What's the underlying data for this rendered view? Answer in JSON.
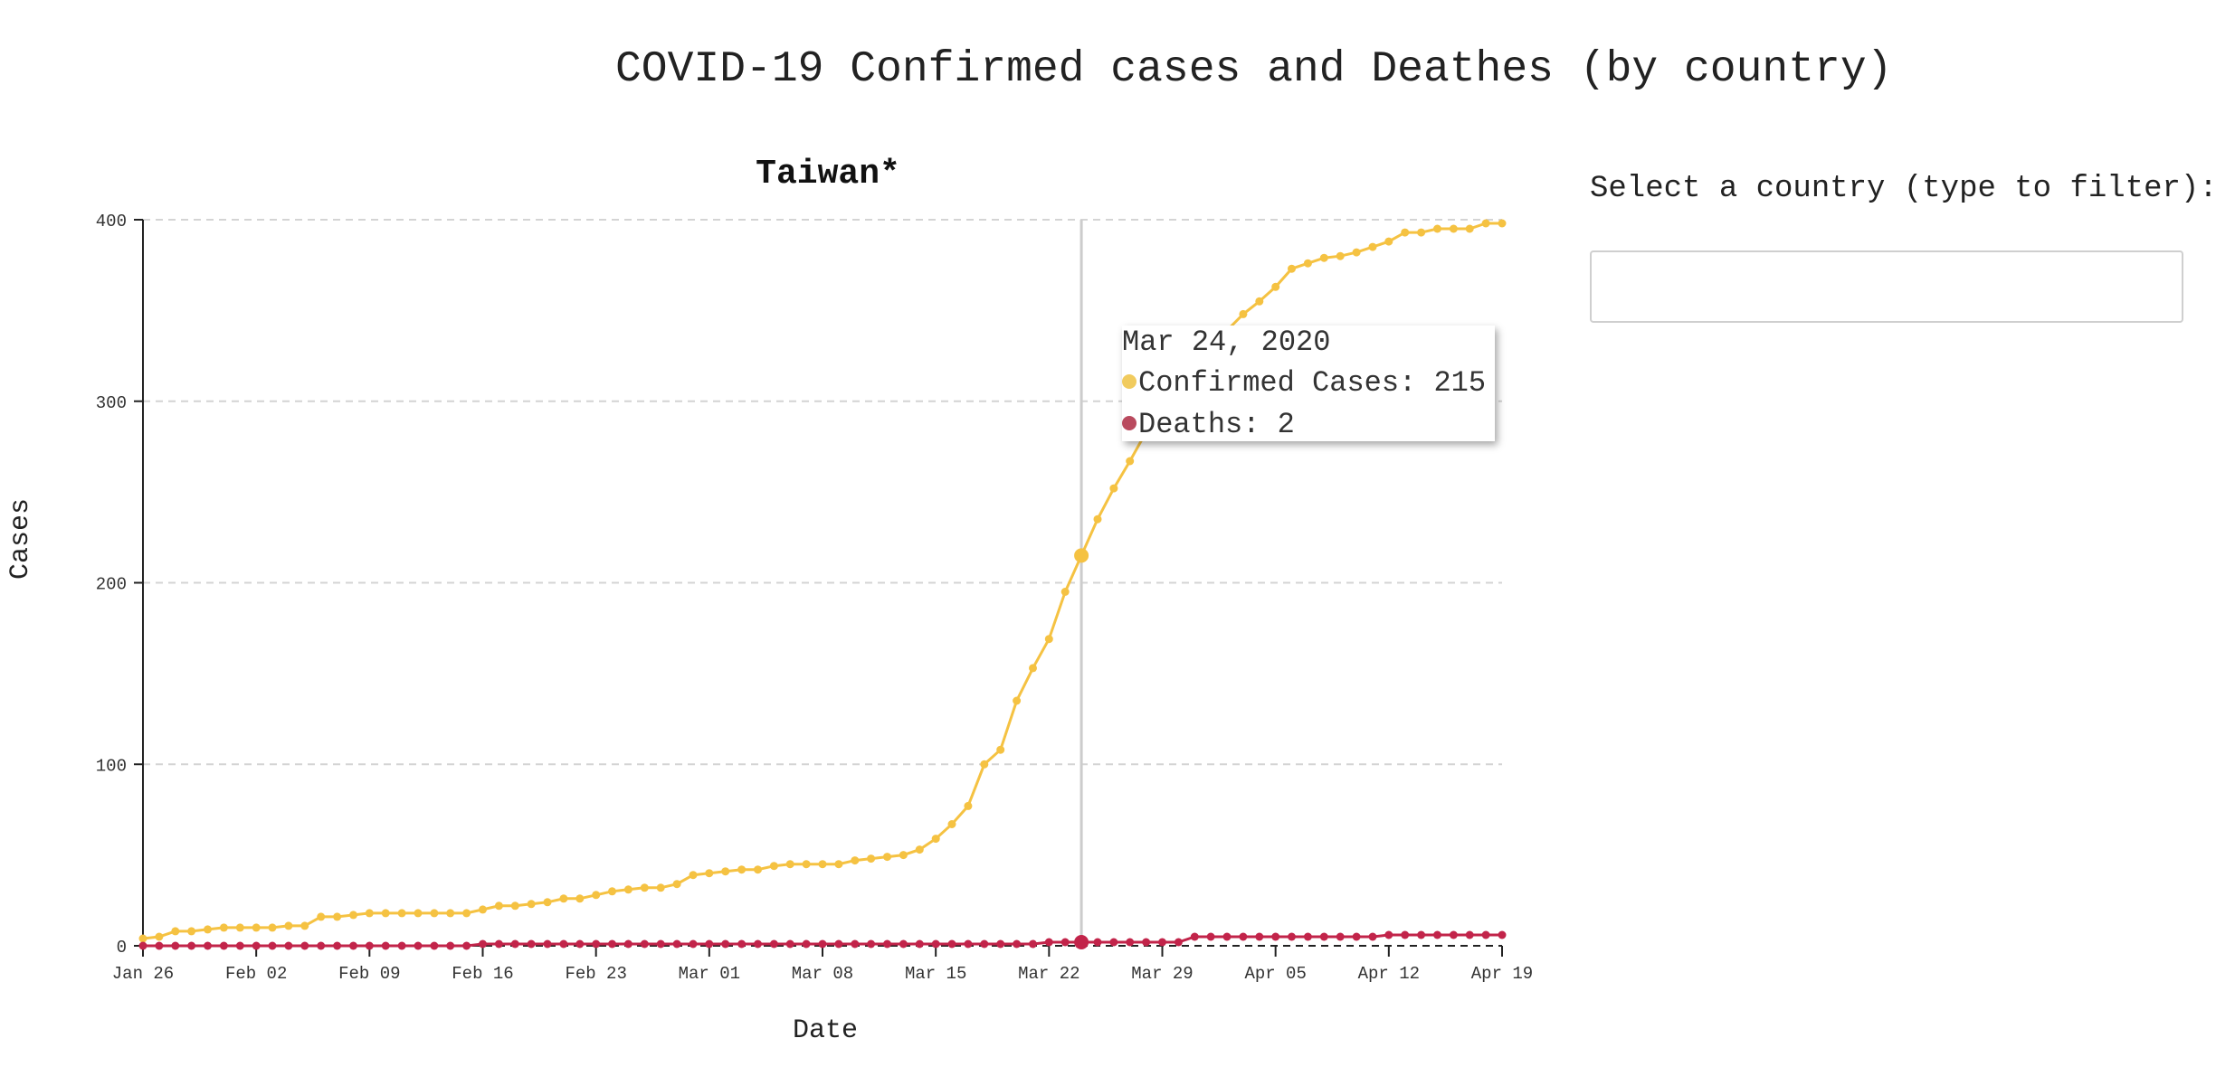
{
  "page": {
    "title": "COVID-19 Confirmed cases and Deathes (by country)"
  },
  "filter": {
    "label": "Select a country (type to filter):",
    "value": "",
    "placeholder": ""
  },
  "tooltip": {
    "date": "Mar 24, 2020",
    "confirmed_label": "Confirmed Cases: 215",
    "deaths_label": "Deaths: 2"
  },
  "colors": {
    "confirmed": "#f5c242",
    "deaths": "#c2244a",
    "confirmed_legend": "#f1cb5e",
    "deaths_legend": "#b94a5e"
  },
  "chart_data": {
    "type": "line",
    "title": "Taiwan*",
    "xlabel": "Date",
    "ylabel": "Cases",
    "ylim": [
      0,
      400
    ],
    "y_ticks": [
      0,
      100,
      200,
      300,
      400
    ],
    "x_ticks": [
      "Jan 26",
      "Feb 02",
      "Feb 09",
      "Feb 16",
      "Feb 23",
      "Mar 01",
      "Mar 08",
      "Mar 15",
      "Mar 22",
      "Mar 29",
      "Apr 05",
      "Apr 12",
      "Apr 19"
    ],
    "grid": "horizontal dashed",
    "highlight_date": "2020-03-24",
    "dates": [
      "2020-01-26",
      "2020-01-27",
      "2020-01-28",
      "2020-01-29",
      "2020-01-30",
      "2020-01-31",
      "2020-02-01",
      "2020-02-02",
      "2020-02-03",
      "2020-02-04",
      "2020-02-05",
      "2020-02-06",
      "2020-02-07",
      "2020-02-08",
      "2020-02-09",
      "2020-02-10",
      "2020-02-11",
      "2020-02-12",
      "2020-02-13",
      "2020-02-14",
      "2020-02-15",
      "2020-02-16",
      "2020-02-17",
      "2020-02-18",
      "2020-02-19",
      "2020-02-20",
      "2020-02-21",
      "2020-02-22",
      "2020-02-23",
      "2020-02-24",
      "2020-02-25",
      "2020-02-26",
      "2020-02-27",
      "2020-02-28",
      "2020-02-29",
      "2020-03-01",
      "2020-03-02",
      "2020-03-03",
      "2020-03-04",
      "2020-03-05",
      "2020-03-06",
      "2020-03-07",
      "2020-03-08",
      "2020-03-09",
      "2020-03-10",
      "2020-03-11",
      "2020-03-12",
      "2020-03-13",
      "2020-03-14",
      "2020-03-15",
      "2020-03-16",
      "2020-03-17",
      "2020-03-18",
      "2020-03-19",
      "2020-03-20",
      "2020-03-21",
      "2020-03-22",
      "2020-03-23",
      "2020-03-24",
      "2020-03-25",
      "2020-03-26",
      "2020-03-27",
      "2020-03-28",
      "2020-03-29",
      "2020-03-30",
      "2020-03-31",
      "2020-04-01",
      "2020-04-02",
      "2020-04-03",
      "2020-04-04",
      "2020-04-05",
      "2020-04-06",
      "2020-04-07",
      "2020-04-08",
      "2020-04-09",
      "2020-04-10",
      "2020-04-11",
      "2020-04-12",
      "2020-04-13",
      "2020-04-14",
      "2020-04-15",
      "2020-04-16",
      "2020-04-17",
      "2020-04-18",
      "2020-04-19"
    ],
    "series": [
      {
        "name": "Confirmed Cases",
        "values": [
          4,
          5,
          8,
          8,
          9,
          10,
          10,
          10,
          10,
          11,
          11,
          16,
          16,
          17,
          18,
          18,
          18,
          18,
          18,
          18,
          18,
          20,
          22,
          22,
          23,
          24,
          26,
          26,
          28,
          30,
          31,
          32,
          32,
          34,
          39,
          40,
          41,
          42,
          42,
          44,
          45,
          45,
          45,
          45,
          47,
          48,
          49,
          50,
          53,
          59,
          67,
          77,
          100,
          108,
          135,
          153,
          169,
          195,
          215,
          235,
          252,
          267,
          283,
          298,
          306,
          322,
          329,
          339,
          348,
          355,
          363,
          373,
          376,
          379,
          380,
          382,
          385,
          388,
          393,
          393,
          395,
          395,
          395,
          398,
          398
        ]
      },
      {
        "name": "Deaths",
        "values": [
          0,
          0,
          0,
          0,
          0,
          0,
          0,
          0,
          0,
          0,
          0,
          0,
          0,
          0,
          0,
          0,
          0,
          0,
          0,
          0,
          0,
          1,
          1,
          1,
          1,
          1,
          1,
          1,
          1,
          1,
          1,
          1,
          1,
          1,
          1,
          1,
          1,
          1,
          1,
          1,
          1,
          1,
          1,
          1,
          1,
          1,
          1,
          1,
          1,
          1,
          1,
          1,
          1,
          1,
          1,
          1,
          2,
          2,
          2,
          2,
          2,
          2,
          2,
          2,
          2,
          5,
          5,
          5,
          5,
          5,
          5,
          5,
          5,
          5,
          5,
          5,
          5,
          6,
          6,
          6,
          6,
          6,
          6,
          6,
          6
        ]
      }
    ]
  }
}
